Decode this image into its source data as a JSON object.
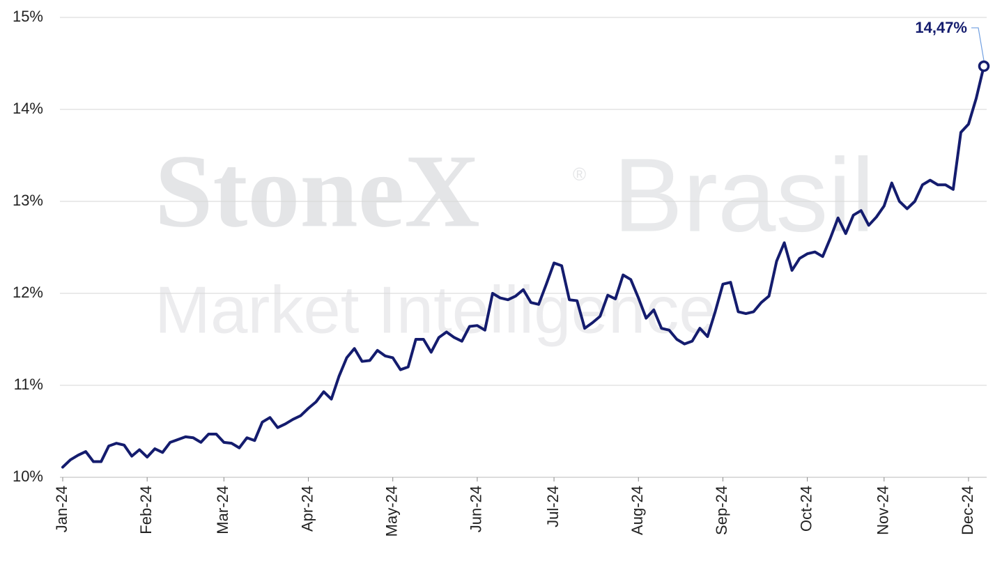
{
  "chart_data": {
    "type": "line",
    "watermark": {
      "brand": "StoneX",
      "mark": "®",
      "region": "Brasil",
      "tagline": "Market Intelligence"
    },
    "categories": [
      "Jan-24",
      null,
      null,
      null,
      null,
      null,
      null,
      null,
      null,
      null,
      null,
      "Feb-24",
      null,
      null,
      null,
      null,
      null,
      null,
      null,
      null,
      null,
      "Mar-24",
      null,
      null,
      null,
      null,
      null,
      null,
      null,
      null,
      null,
      null,
      "Apr-24",
      null,
      null,
      null,
      null,
      null,
      null,
      null,
      null,
      null,
      null,
      "May-24",
      null,
      null,
      null,
      null,
      null,
      null,
      null,
      null,
      null,
      null,
      "Jun-24",
      null,
      null,
      null,
      null,
      null,
      null,
      null,
      null,
      null,
      "Jul-24",
      null,
      null,
      null,
      null,
      null,
      null,
      null,
      null,
      null,
      null,
      "Aug-24",
      null,
      null,
      null,
      null,
      null,
      null,
      null,
      null,
      null,
      null,
      "Sep-24",
      null,
      null,
      null,
      null,
      null,
      null,
      null,
      null,
      null,
      null,
      "Oct-24",
      null,
      null,
      null,
      null,
      null,
      null,
      null,
      null,
      null,
      "Nov-24",
      null,
      null,
      null,
      null,
      null,
      null,
      null,
      null,
      null,
      null,
      "Dec-24",
      null,
      null
    ],
    "series": [
      {
        "color": "#141c6e",
        "values": [
          10.11,
          10.19,
          10.24,
          10.28,
          10.17,
          10.17,
          10.34,
          10.37,
          10.35,
          10.23,
          10.3,
          10.22,
          10.31,
          10.27,
          10.38,
          10.41,
          10.44,
          10.43,
          10.38,
          10.47,
          10.47,
          10.38,
          10.37,
          10.32,
          10.43,
          10.4,
          10.6,
          10.65,
          10.54,
          10.58,
          10.63,
          10.67,
          10.75,
          10.82,
          10.93,
          10.85,
          11.1,
          11.3,
          11.4,
          11.26,
          11.27,
          11.38,
          11.32,
          11.3,
          11.17,
          11.2,
          11.5,
          11.5,
          11.36,
          11.52,
          11.58,
          11.52,
          11.48,
          11.64,
          11.65,
          11.6,
          12.0,
          11.95,
          11.93,
          11.97,
          12.04,
          11.9,
          11.88,
          12.1,
          12.33,
          12.3,
          11.93,
          11.92,
          11.62,
          11.68,
          11.75,
          11.98,
          11.94,
          12.2,
          12.15,
          11.95,
          11.73,
          11.82,
          11.62,
          11.6,
          11.5,
          11.45,
          11.48,
          11.62,
          11.53,
          11.8,
          12.1,
          12.12,
          11.8,
          11.78,
          11.8,
          11.9,
          11.97,
          12.35,
          12.55,
          12.25,
          12.38,
          12.43,
          12.45,
          12.4,
          12.6,
          12.82,
          12.65,
          12.85,
          12.9,
          12.74,
          12.83,
          12.95,
          13.2,
          13.0,
          12.92,
          13.0,
          13.18,
          13.23,
          13.18,
          13.18,
          13.13,
          13.75,
          13.84,
          14.12,
          14.47
        ],
        "value_labels": [
          null,
          null,
          null,
          null,
          null,
          null,
          null,
          null,
          null,
          null,
          null,
          null,
          null,
          null,
          null,
          null,
          null,
          null,
          null,
          null,
          null,
          null,
          null,
          null,
          null,
          null,
          null,
          null,
          null,
          null,
          null,
          null,
          null,
          null,
          null,
          null,
          null,
          null,
          null,
          null,
          null,
          null,
          null,
          null,
          null,
          null,
          null,
          null,
          null,
          null,
          null,
          null,
          null,
          null,
          null,
          null,
          null,
          null,
          null,
          null,
          null,
          null,
          null,
          null,
          null,
          null,
          null,
          null,
          null,
          null,
          null,
          null,
          null,
          null,
          null,
          null,
          null,
          null,
          null,
          null,
          null,
          null,
          null,
          null,
          null,
          null,
          null,
          null,
          null,
          null,
          null,
          null,
          null,
          null,
          null,
          null,
          null,
          null,
          null,
          null,
          null,
          null,
          null,
          null,
          null,
          null,
          null,
          null,
          null,
          null,
          null,
          null,
          null,
          null,
          null,
          null,
          null,
          null,
          null,
          null,
          "14,47%"
        ]
      }
    ],
    "ylim": [
      10,
      15
    ],
    "yticks": [
      {
        "value": 10,
        "label": "10%"
      },
      {
        "value": 11,
        "label": "11%"
      },
      {
        "value": 12,
        "label": "12%"
      },
      {
        "value": 13,
        "label": "13%"
      },
      {
        "value": 14,
        "label": "14%"
      },
      {
        "value": 15,
        "label": "15%"
      }
    ],
    "grid": true
  }
}
